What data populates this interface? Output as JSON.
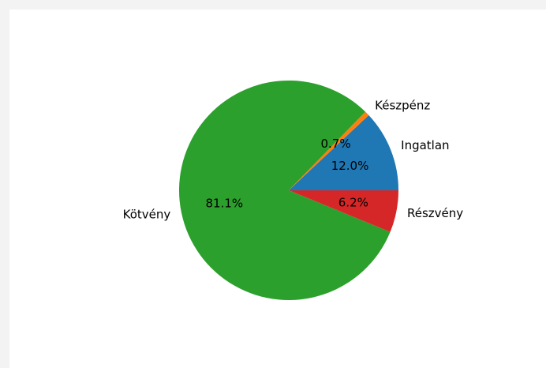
{
  "chart_data": {
    "type": "pie",
    "title": "",
    "slices": [
      {
        "label": "Ingatlan",
        "value": 12.0,
        "pct_text": "12.0%",
        "color": "#1f77b4"
      },
      {
        "label": "Készpénz",
        "value": 0.7,
        "pct_text": "0.7%",
        "color": "#ff7f0e"
      },
      {
        "label": "Kötvény",
        "value": 81.1,
        "pct_text": "81.1%",
        "color": "#2ca02c"
      },
      {
        "label": "Részvény",
        "value": 6.2,
        "pct_text": "6.2%",
        "color": "#d62728"
      }
    ],
    "start_angle_deg": 0,
    "direction": "counterclockwise"
  }
}
